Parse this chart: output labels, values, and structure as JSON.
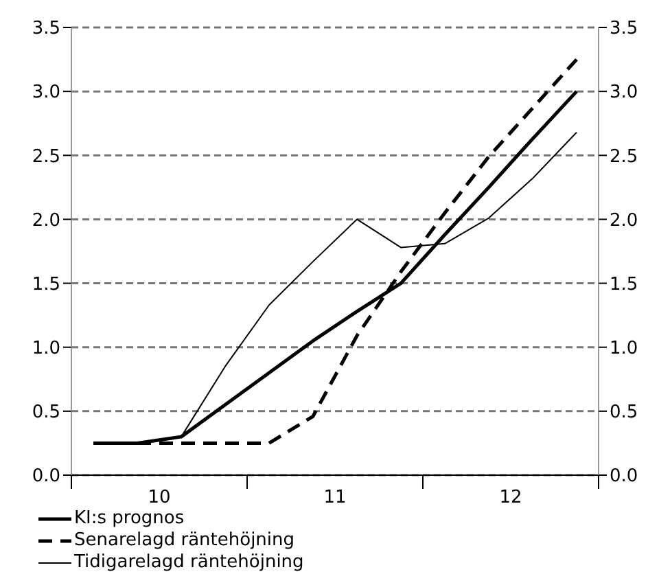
{
  "chart_data": {
    "type": "line",
    "x": [
      9.625,
      9.875,
      10.125,
      10.375,
      10.625,
      10.875,
      11.125,
      11.375,
      11.625,
      11.875,
      12.125,
      12.375
    ],
    "xlim": [
      9.5,
      12.5
    ],
    "xticks": [
      {
        "value": 9.5,
        "label": null
      },
      10,
      {
        "value": 10.5,
        "label": null
      },
      11,
      {
        "value": 11.5,
        "label": null
      },
      12,
      {
        "value": 12.5,
        "label": null
      }
    ],
    "ylim": [
      0,
      3.5
    ],
    "yticks": [
      {
        "value": 0,
        "label": "0.0"
      },
      {
        "value": 0.5,
        "label": "0.5"
      },
      {
        "value": 1,
        "label": "1.0"
      },
      {
        "value": 1.5,
        "label": "1.5"
      },
      {
        "value": 2,
        "label": "2.0"
      },
      {
        "value": 2.5,
        "label": "2.5"
      },
      {
        "value": 3,
        "label": "3.0"
      },
      {
        "value": 3.5,
        "label": "3.5"
      }
    ],
    "y2lim": [
      0,
      3.5
    ],
    "y2ticks": [
      {
        "value": 0,
        "label": "0.0"
      },
      {
        "value": 0.5,
        "label": "0.5"
      },
      {
        "value": 1,
        "label": "1.0"
      },
      {
        "value": 1.5,
        "label": "1.5"
      },
      {
        "value": 2,
        "label": "2.0"
      },
      {
        "value": 2.5,
        "label": "2.5"
      },
      {
        "value": 3,
        "label": "3.0"
      },
      {
        "value": 3.5,
        "label": "3.5"
      }
    ],
    "grid": "y",
    "legend": "bottom",
    "marker": "none",
    "series": [
      {
        "name": "KI:s prognos",
        "color": "#000000",
        "line_style": "solid",
        "values": [
          0.25,
          0.25,
          0.3,
          0.55,
          0.8,
          1.05,
          1.28,
          1.5,
          1.88,
          2.25,
          2.63,
          3.0
        ]
      },
      {
        "name": "Senarelagd räntehöjning",
        "color": "#000000",
        "line_style": "dashed",
        "values": [
          0.25,
          0.25,
          0.25,
          0.25,
          0.25,
          0.46,
          1.09,
          1.59,
          2.05,
          2.49,
          2.87,
          3.25
        ]
      },
      {
        "name": "Tidigarelagd räntehöjning",
        "color": "#000000",
        "line_style": "solid",
        "values": [
          0.25,
          0.25,
          0.3,
          0.85,
          1.33,
          1.67,
          2.0,
          1.78,
          1.81,
          2.01,
          2.32,
          2.68
        ]
      }
    ]
  }
}
